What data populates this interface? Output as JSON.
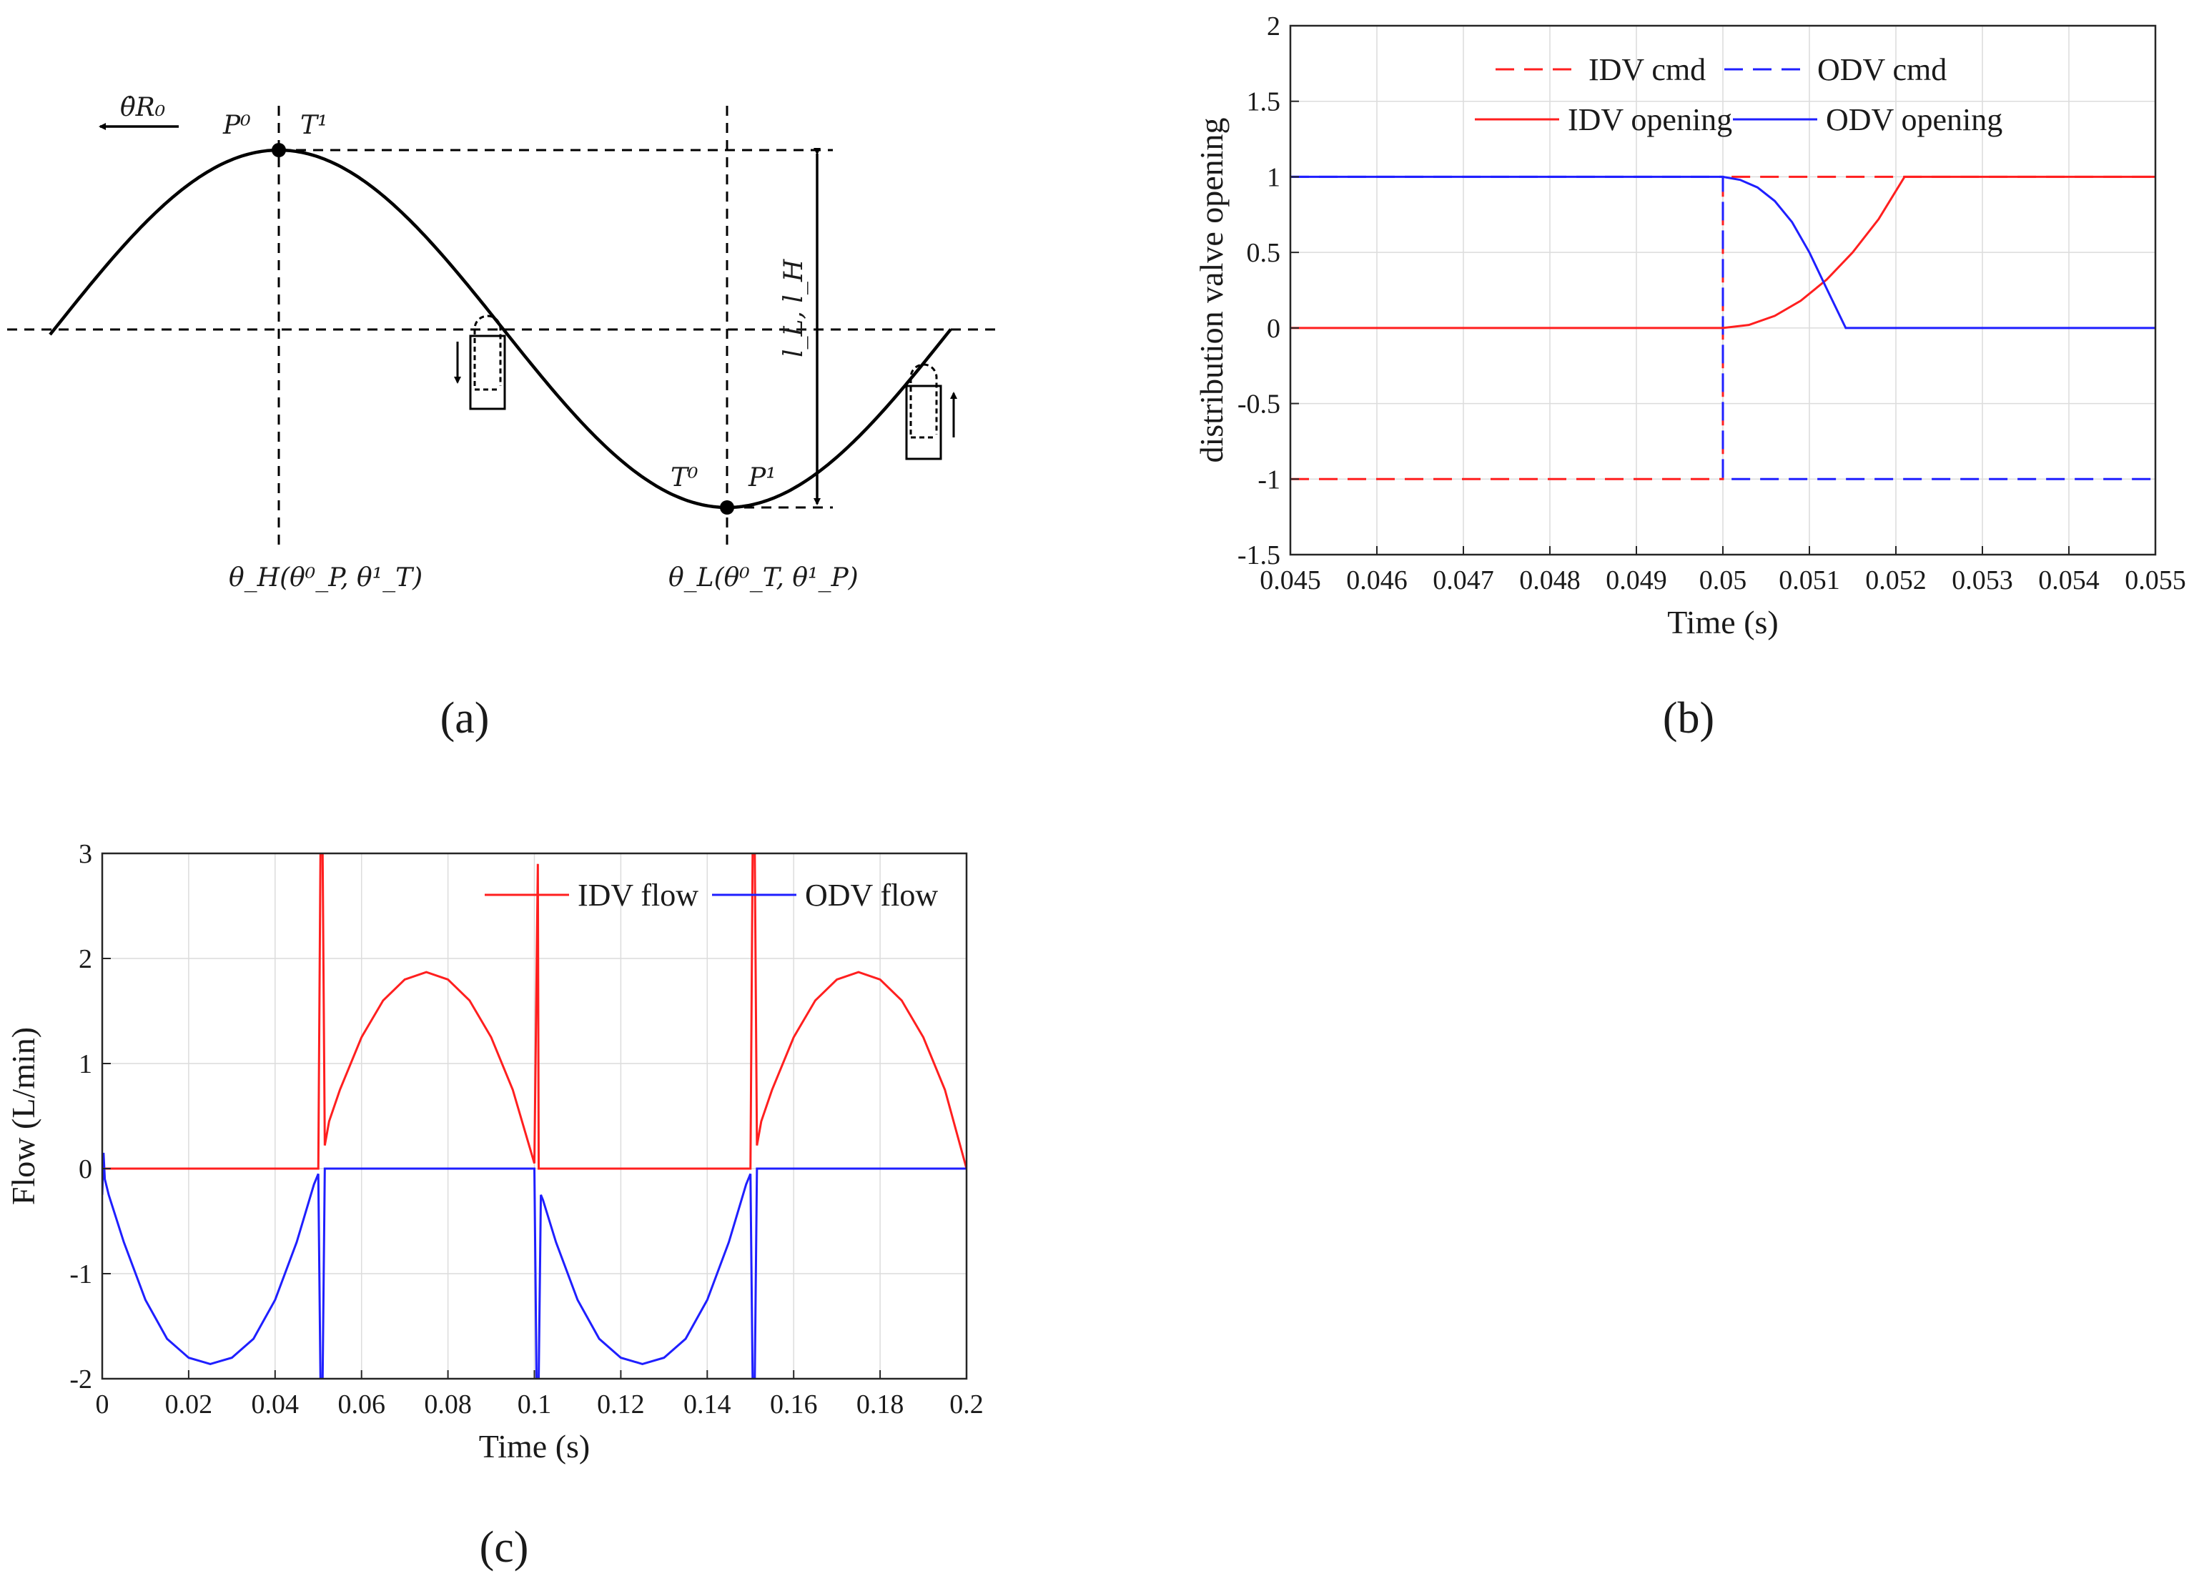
{
  "panel_labels": {
    "a": "(a)",
    "b": "(b)",
    "c": "(c)"
  },
  "diagram_a": {
    "velocity_label": "θ̇R₀",
    "peak_labels": {
      "p0": "P⁰",
      "t1": "T¹"
    },
    "trough_labels": {
      "t0": "T⁰",
      "p1": "P¹"
    },
    "stroke_label": "l_L, l_H",
    "theta_H_label": "θ_H(θ⁰_P, θ¹_T)",
    "theta_L_label": "θ_L(θ⁰_T, θ¹_P)"
  },
  "chart_data": [
    {
      "id": "b",
      "type": "line",
      "title": "",
      "xlabel": "Time (s)",
      "ylabel": "distribution valve opening",
      "xlim": [
        0.045,
        0.055
      ],
      "ylim": [
        -1.5,
        2
      ],
      "xticks": [
        0.045,
        0.046,
        0.047,
        0.048,
        0.049,
        0.05,
        0.051,
        0.052,
        0.053,
        0.054,
        0.055
      ],
      "xtick_labels": [
        "0.045",
        "0.046",
        "0.047",
        "0.048",
        "0.049",
        "0.05",
        "0.051",
        "0.052",
        "0.053",
        "0.054",
        "0.055"
      ],
      "yticks": [
        -1.5,
        -1,
        -0.5,
        0,
        0.5,
        1,
        1.5,
        2
      ],
      "ytick_labels": [
        "-1.5",
        "-1",
        "-0.5",
        "0",
        "0.5",
        "1",
        "1.5",
        "2"
      ],
      "grid": true,
      "legend_position": "top-center",
      "series": [
        {
          "name": "IDV cmd",
          "color": "#ff1f1f",
          "dash": true,
          "x": [
            0.045,
            0.05,
            0.05,
            0.055
          ],
          "y": [
            -1,
            -1,
            1,
            1
          ]
        },
        {
          "name": "ODV cmd",
          "color": "#1f1fff",
          "dash": true,
          "x": [
            0.045,
            0.05,
            0.05,
            0.055
          ],
          "y": [
            1,
            1,
            -1,
            -1
          ]
        },
        {
          "name": "IDV opening",
          "color": "#ff1f1f",
          "dash": false,
          "x": [
            0.045,
            0.05,
            0.0503,
            0.0506,
            0.0509,
            0.0512,
            0.0515,
            0.0518,
            0.0521,
            0.055
          ],
          "y": [
            0,
            0,
            0.02,
            0.08,
            0.18,
            0.32,
            0.5,
            0.72,
            1,
            1
          ]
        },
        {
          "name": "ODV opening",
          "color": "#1f1fff",
          "dash": false,
          "x": [
            0.045,
            0.05,
            0.0502,
            0.0504,
            0.0506,
            0.0508,
            0.051,
            0.0512,
            0.05142,
            0.055
          ],
          "y": [
            1,
            1,
            0.98,
            0.93,
            0.84,
            0.7,
            0.5,
            0.26,
            0,
            0
          ]
        }
      ]
    },
    {
      "id": "c",
      "type": "line",
      "title": "",
      "xlabel": "Time (s)",
      "ylabel": "Flow (L/min)",
      "xlim": [
        0,
        0.2
      ],
      "ylim": [
        -2,
        3
      ],
      "xticks": [
        0,
        0.02,
        0.04,
        0.06,
        0.08,
        0.1,
        0.12,
        0.14,
        0.16,
        0.18,
        0.2
      ],
      "xtick_labels": [
        "0",
        "0.02",
        "0.04",
        "0.06",
        "0.08",
        "0.1",
        "0.12",
        "0.14",
        "0.16",
        "0.18",
        "0.2"
      ],
      "yticks": [
        -2,
        -1,
        0,
        1,
        2,
        3
      ],
      "ytick_labels": [
        "-2",
        "-1",
        "0",
        "1",
        "2",
        "3"
      ],
      "grid": true,
      "legend_position": "top-right",
      "series": [
        {
          "name": "IDV flow",
          "color": "#ff1f1f",
          "x": [
            0,
            0.0499,
            0.05,
            0.0505,
            0.051,
            0.0515,
            0.0525,
            0.055,
            0.06,
            0.065,
            0.07,
            0.075,
            0.08,
            0.085,
            0.09,
            0.095,
            0.1,
            0.1008,
            0.101,
            0.1015,
            0.1499,
            0.15,
            0.1505,
            0.151,
            0.1515,
            0.1525,
            0.155,
            0.16,
            0.165,
            0.17,
            0.175,
            0.18,
            0.185,
            0.19,
            0.195,
            0.2
          ],
          "y": [
            0,
            0,
            0,
            3,
            3,
            0.22,
            0.45,
            0.75,
            1.25,
            1.6,
            1.8,
            1.87,
            1.8,
            1.6,
            1.25,
            0.75,
            0.05,
            2.9,
            0,
            0,
            0,
            0,
            3,
            3,
            0.22,
            0.45,
            0.75,
            1.25,
            1.6,
            1.8,
            1.87,
            1.8,
            1.6,
            1.25,
            0.75,
            0
          ]
        },
        {
          "name": "ODV flow",
          "color": "#1f1fff",
          "x": [
            0,
            0.0003,
            0.0006,
            0.0015,
            0.005,
            0.01,
            0.015,
            0.02,
            0.025,
            0.03,
            0.035,
            0.04,
            0.045,
            0.049,
            0.05,
            0.0505,
            0.051,
            0.0515,
            0.052,
            0.1,
            0.1005,
            0.101,
            0.1015,
            0.102,
            0.105,
            0.11,
            0.115,
            0.12,
            0.125,
            0.13,
            0.135,
            0.14,
            0.145,
            0.149,
            0.15,
            0.1505,
            0.151,
            0.1515,
            0.152,
            0.2
          ],
          "y": [
            -0.25,
            0.15,
            -0.1,
            -0.25,
            -0.7,
            -1.25,
            -1.62,
            -1.8,
            -1.86,
            -1.8,
            -1.62,
            -1.25,
            -0.7,
            -0.15,
            -0.05,
            -2,
            -2,
            0,
            0,
            0,
            -2,
            -2,
            -0.25,
            -0.3,
            -0.7,
            -1.25,
            -1.62,
            -1.8,
            -1.86,
            -1.8,
            -1.62,
            -1.25,
            -0.7,
            -0.15,
            -0.05,
            -2,
            -2,
            0,
            0,
            0
          ]
        }
      ]
    }
  ]
}
